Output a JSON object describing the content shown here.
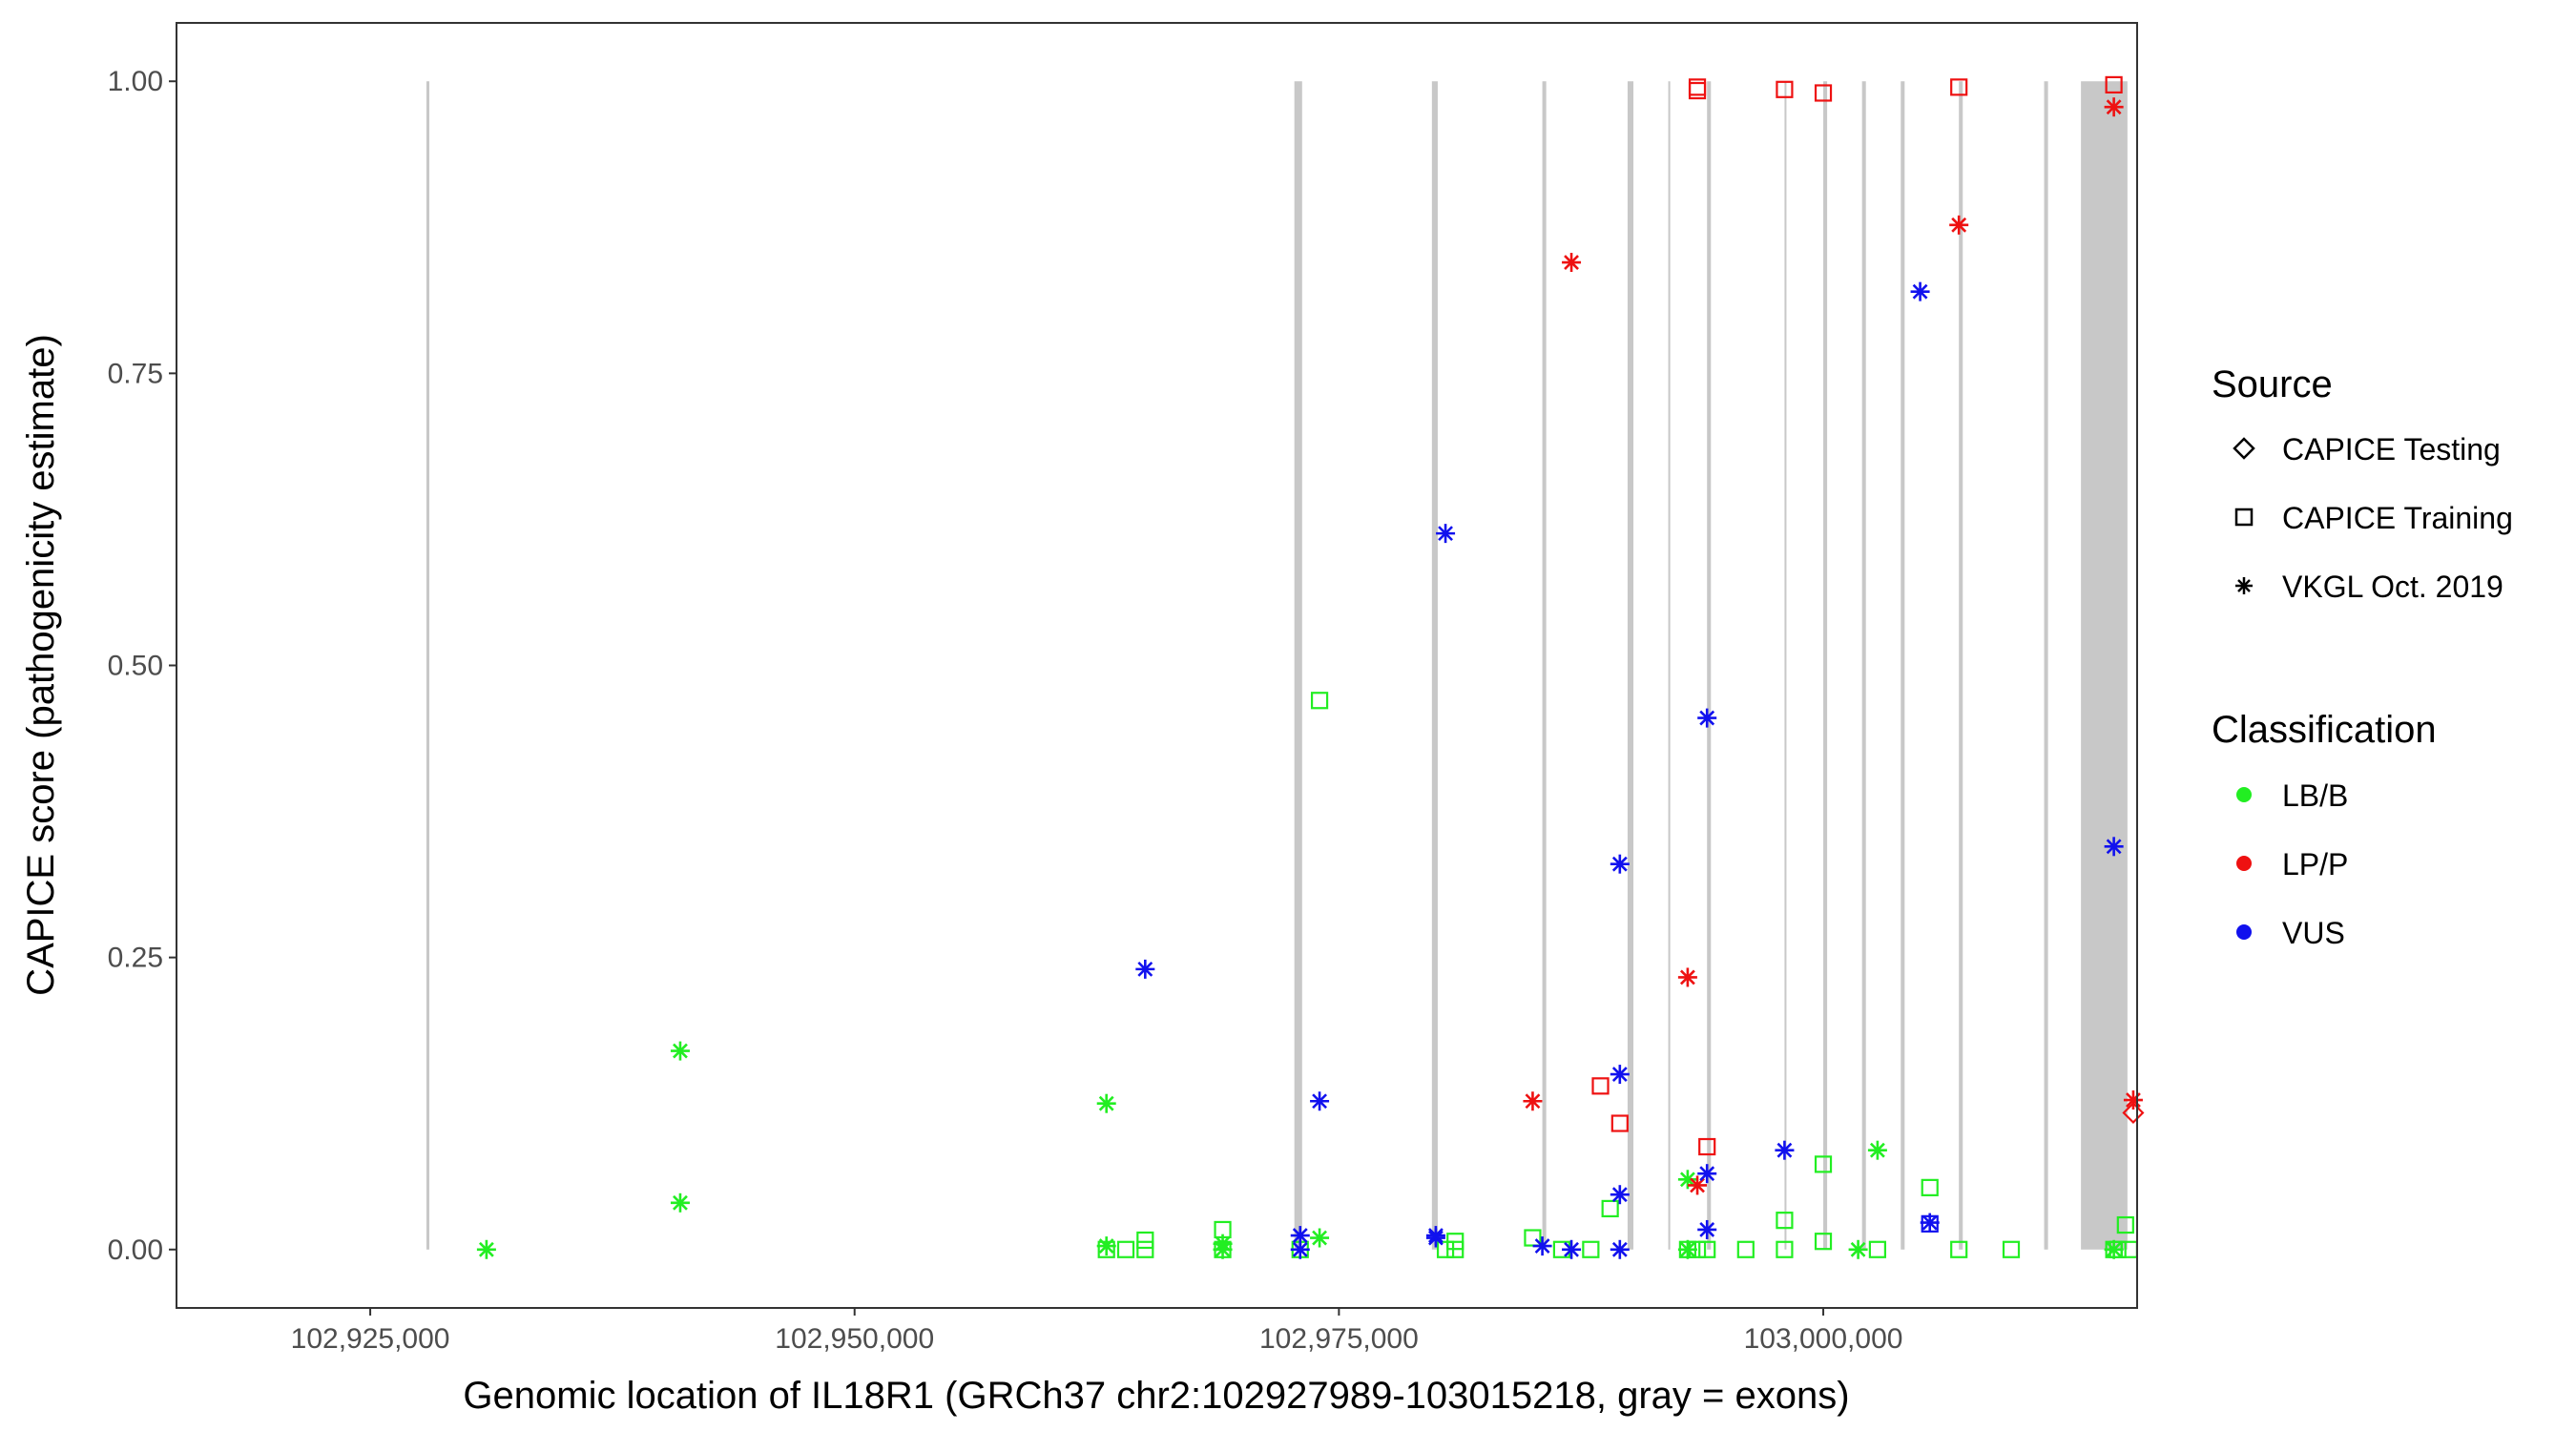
{
  "chart_data": {
    "type": "scatter",
    "xlabel": "Genomic location of IL18R1 (GRCh37 chr2:102927989-103015218, gray = exons)",
    "ylabel": "CAPICE score (pathogenicity estimate)",
    "xlim": [
      102915000,
      103016200
    ],
    "ylim": [
      -0.05,
      1.05
    ],
    "x_ticks": [
      102925000,
      102950000,
      102975000,
      103000000
    ],
    "x_tick_labels": [
      "102,925,000",
      "102,950,000",
      "102,975,000",
      "103,000,000"
    ],
    "y_ticks": [
      0,
      0.25,
      0.5,
      0.75,
      1.0
    ],
    "y_tick_labels": [
      "0.00",
      "0.25",
      "0.50",
      "0.75",
      "1.00"
    ],
    "grid": false,
    "exon_color": "#c8c8c8",
    "exons": [
      [
        102927900,
        102928050
      ],
      [
        102972700,
        102973100
      ],
      [
        102979800,
        102980100
      ],
      [
        102985500,
        102985700
      ],
      [
        102989900,
        102990200
      ],
      [
        102992000,
        102992100
      ],
      [
        102994000,
        102994200
      ],
      [
        102998000,
        102998100
      ],
      [
        103000000,
        103000200
      ],
      [
        103002000,
        103002200
      ],
      [
        103004000,
        103004200
      ],
      [
        103007000,
        103007200
      ],
      [
        103011400,
        103011600
      ],
      [
        103013300,
        103015700
      ]
    ],
    "legend": {
      "position": "right",
      "source_title": "Source",
      "source_items": [
        {
          "label": "CAPICE Testing",
          "shape": "diamond"
        },
        {
          "label": "CAPICE Training",
          "shape": "square"
        },
        {
          "label": "VKGL Oct. 2019",
          "shape": "asterisk"
        }
      ],
      "class_title": "Classification",
      "class_items": [
        {
          "label": "LB/B",
          "color": "#22ee22"
        },
        {
          "label": "LP/P",
          "color": "#ee1111"
        },
        {
          "label": "VUS",
          "color": "#1111ee"
        }
      ]
    },
    "series": [
      {
        "classification": "LB/B",
        "source": "VKGL Oct. 2019",
        "color": "#22ee22",
        "shape": "asterisk",
        "points": [
          [
            102931000,
            0.0
          ],
          [
            102941000,
            0.17
          ],
          [
            102941000,
            0.04
          ],
          [
            102963000,
            0.125
          ],
          [
            102963000,
            0.003
          ],
          [
            102969000,
            0.005
          ],
          [
            102969000,
            0.0
          ],
          [
            102974000,
            0.01
          ],
          [
            102993000,
            0.06
          ],
          [
            102993000,
            0.0
          ],
          [
            103001800,
            0.0
          ],
          [
            103002800,
            0.085
          ],
          [
            103015000,
            0.0
          ]
        ]
      },
      {
        "classification": "LB/B",
        "source": "CAPICE Training",
        "color": "#22ee22",
        "shape": "square",
        "points": [
          [
            102963000,
            0.0
          ],
          [
            102964000,
            0.0
          ],
          [
            102965000,
            0.0
          ],
          [
            102965000,
            0.008
          ],
          [
            102969000,
            0.017
          ],
          [
            102969000,
            0.0
          ],
          [
            102973000,
            0.0
          ],
          [
            102974000,
            0.47
          ],
          [
            102980500,
            0.0
          ],
          [
            102981000,
            0.007
          ],
          [
            102981000,
            0.0
          ],
          [
            102985000,
            0.01
          ],
          [
            102986500,
            0.0
          ],
          [
            102988000,
            0.0
          ],
          [
            102989000,
            0.035
          ],
          [
            102993000,
            0.0
          ],
          [
            102993500,
            0.0
          ],
          [
            102994000,
            0.0
          ],
          [
            102996000,
            0.0
          ],
          [
            102998000,
            0.0
          ],
          [
            102998000,
            0.025
          ],
          [
            103000000,
            0.073
          ],
          [
            103000000,
            0.007
          ],
          [
            103002800,
            0.0
          ],
          [
            103005500,
            0.053
          ],
          [
            103007000,
            0.0
          ],
          [
            103009700,
            0.0
          ],
          [
            103015000,
            0.0
          ],
          [
            103015200,
            0.0
          ],
          [
            103015600,
            0.021
          ],
          [
            103015800,
            0.0
          ]
        ]
      },
      {
        "classification": "LP/P",
        "source": "VKGL Oct. 2019",
        "color": "#ee1111",
        "shape": "asterisk",
        "points": [
          [
            102985000,
            0.127
          ],
          [
            102987000,
            0.845
          ],
          [
            102993000,
            0.233
          ],
          [
            102993500,
            0.055
          ],
          [
            103007000,
            0.877
          ],
          [
            103015000,
            0.978
          ],
          [
            103016000,
            0.128
          ]
        ]
      },
      {
        "classification": "LP/P",
        "source": "CAPICE Training",
        "color": "#ee1111",
        "shape": "square",
        "points": [
          [
            102988500,
            0.14
          ],
          [
            102989500,
            0.108
          ],
          [
            102993500,
            0.992
          ],
          [
            102993500,
            0.995
          ],
          [
            102994000,
            0.088
          ],
          [
            102998000,
            0.993
          ],
          [
            103000000,
            0.99
          ],
          [
            103007000,
            0.995
          ],
          [
            103015000,
            0.997
          ]
        ]
      },
      {
        "classification": "LP/P",
        "source": "CAPICE Testing",
        "color": "#ee1111",
        "shape": "diamond",
        "points": [
          [
            103016000,
            0.117
          ]
        ]
      },
      {
        "classification": "VUS",
        "source": "VKGL Oct. 2019",
        "color": "#1111ee",
        "shape": "asterisk",
        "points": [
          [
            102965000,
            0.24
          ],
          [
            102973000,
            0.0
          ],
          [
            102973000,
            0.012
          ],
          [
            102974000,
            0.127
          ],
          [
            102980000,
            0.01
          ],
          [
            102980000,
            0.012
          ],
          [
            102980500,
            0.613
          ],
          [
            102985500,
            0.003
          ],
          [
            102987000,
            0.0
          ],
          [
            102989500,
            0.33
          ],
          [
            102989500,
            0.15
          ],
          [
            102989500,
            0.047
          ],
          [
            102989500,
            0.0
          ],
          [
            102994000,
            0.455
          ],
          [
            102994000,
            0.017
          ],
          [
            102994000,
            0.065
          ],
          [
            102998000,
            0.085
          ],
          [
            103005000,
            0.82
          ],
          [
            103005500,
            0.023
          ],
          [
            103015000,
            0.345
          ]
        ]
      },
      {
        "classification": "VUS",
        "source": "CAPICE Training",
        "color": "#1111ee",
        "shape": "square",
        "points": [
          [
            103005500,
            0.022
          ]
        ]
      }
    ]
  }
}
